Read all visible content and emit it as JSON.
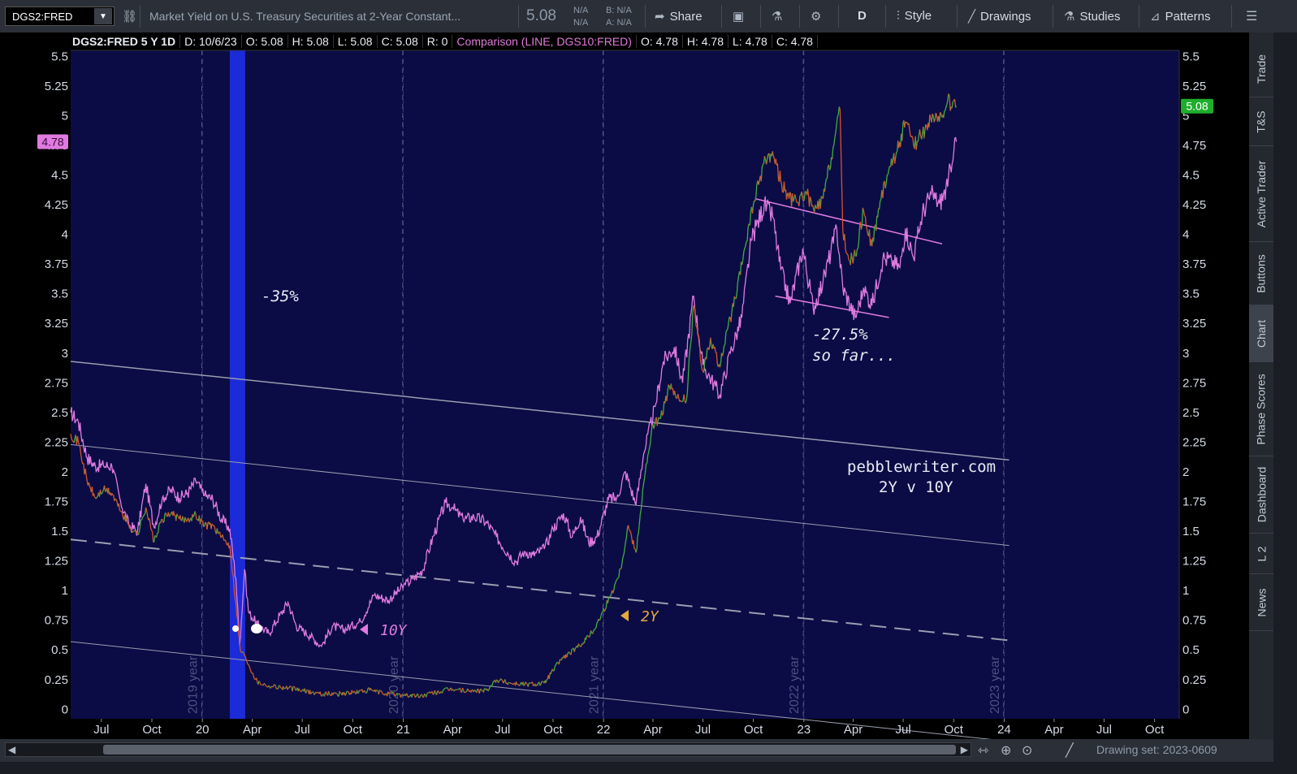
{
  "toolbar": {
    "symbol": "DGS2:FRED",
    "description": "Market Yield on U.S. Treasury Securities at 2-Year Constant...",
    "last_price": "5.08",
    "na1": "N/A",
    "na2": "N/A",
    "bid": "B: N/A",
    "ask": "A: N/A",
    "share_label": "Share",
    "period_label": "D",
    "style_label": "Style",
    "drawings_label": "Drawings",
    "studies_label": "Studies",
    "patterns_label": "Patterns"
  },
  "infobar": {
    "title": "DGS2:FRED 5 Y 1D",
    "date": "D: 10/6/23",
    "open": "O: 5.08",
    "high": "H: 5.08",
    "low": "L: 5.08",
    "close": "C: 5.08",
    "range": "R: 0",
    "comparison": "Comparison (LINE, DGS10:FRED)",
    "cmp_open": "O: 4.78",
    "cmp_high": "H: 4.78",
    "cmp_low": "L: 4.78",
    "cmp_close": "C: 4.78"
  },
  "side_tabs": [
    "Trade",
    "T&S",
    "Active Trader",
    "Buttons",
    "Chart",
    "Phase Scores",
    "Dashboard",
    "L 2",
    "News"
  ],
  "active_side_tab": "Chart",
  "bottombar": {
    "drawing_set": "Drawing set: 2023-0609"
  },
  "annotations": {
    "covid_drop": "-35%",
    "current_drop_line1": "-27.5%",
    "current_drop_line2": "so far...",
    "source_line1": "pebblewriter.com",
    "source_line2": "2Y v 10Y",
    "label_10y": "10Y",
    "label_2y": "2Y"
  },
  "colors": {
    "plot_bg": "#0b0c45",
    "series_2y_up": "#3fae3f",
    "series_2y_down": "#d9522b",
    "series_10y": "#e07ae0",
    "covid_band": "#1b2bd8",
    "label_2y": "#e6a93a",
    "last_price_badge": "#1fae2c",
    "cmp_badge": "#e07ae0"
  },
  "chart_data": {
    "type": "line",
    "title": "DGS2:FRED 5 Y 1D",
    "x_tick_labels": [
      "Jul",
      "Oct",
      "20",
      "Apr",
      "Jul",
      "Oct",
      "21",
      "Apr",
      "Jul",
      "Oct",
      "22",
      "Apr",
      "Jul",
      "Oct",
      "23",
      "Apr",
      "Jul",
      "Oct",
      "24",
      "Apr",
      "Jul",
      "Oct"
    ],
    "x_tick_dates": [
      "2019-07-01",
      "2019-10-01",
      "2020-01-01",
      "2020-04-01",
      "2020-07-01",
      "2020-10-01",
      "2021-01-01",
      "2021-04-01",
      "2021-07-01",
      "2021-10-01",
      "2022-01-01",
      "2022-04-01",
      "2022-07-01",
      "2022-10-01",
      "2023-01-01",
      "2023-04-01",
      "2023-07-01",
      "2023-10-01",
      "2024-01-01",
      "2024-04-01",
      "2024-07-01",
      "2024-10-01"
    ],
    "y_ticks": [
      0,
      0.25,
      0.5,
      0.75,
      1,
      1.25,
      1.5,
      1.75,
      2,
      2.25,
      2.5,
      2.75,
      3,
      3.25,
      3.5,
      3.75,
      4,
      4.25,
      4.5,
      4.75,
      5,
      5.25,
      5.5
    ],
    "y_tick_labels": [
      "0",
      "0.25",
      "0.5",
      "0.75",
      "1",
      "1.25",
      "1.5",
      "1.75",
      "2",
      "2.25",
      "2.5",
      "2.75",
      "3",
      "3.25",
      "3.5",
      "3.75",
      "4",
      "4.25",
      "4.5",
      "4.75",
      "5",
      "5.25",
      "5.5"
    ],
    "ylim": [
      -0.08,
      5.55
    ],
    "xlim": [
      "2019-05-06",
      "2024-11-15"
    ],
    "year_markers": [
      {
        "label": "2019 year",
        "date": "2019-12-31"
      },
      {
        "label": "2020 year",
        "date": "2020-12-31"
      },
      {
        "label": "2021 year",
        "date": "2021-12-31"
      },
      {
        "label": "2022 year",
        "date": "2022-12-31"
      },
      {
        "label": "2023 year",
        "date": "2023-12-31"
      }
    ],
    "last_value_2y": "5.08",
    "last_value_10y": "4.78",
    "highlight_band": {
      "start": "2020-02-20",
      "end": "2020-03-19"
    },
    "series": [
      {
        "name": "DGS2:FRED",
        "points": [
          [
            "2019-05-06",
            2.32
          ],
          [
            "2019-05-20",
            2.25
          ],
          [
            "2019-06-05",
            1.92
          ],
          [
            "2019-06-20",
            1.78
          ],
          [
            "2019-07-05",
            1.85
          ],
          [
            "2019-07-20",
            1.82
          ],
          [
            "2019-08-05",
            1.67
          ],
          [
            "2019-08-20",
            1.55
          ],
          [
            "2019-09-05",
            1.47
          ],
          [
            "2019-09-20",
            1.7
          ],
          [
            "2019-10-05",
            1.41
          ],
          [
            "2019-10-20",
            1.6
          ],
          [
            "2019-11-05",
            1.65
          ],
          [
            "2019-11-20",
            1.6
          ],
          [
            "2019-12-05",
            1.6
          ],
          [
            "2019-12-20",
            1.64
          ],
          [
            "2020-01-05",
            1.55
          ],
          [
            "2020-01-20",
            1.55
          ],
          [
            "2020-02-05",
            1.45
          ],
          [
            "2020-02-20",
            1.38
          ],
          [
            "2020-03-02",
            0.9
          ],
          [
            "2020-03-10",
            0.5
          ],
          [
            "2020-03-19",
            0.45
          ],
          [
            "2020-03-25",
            0.38
          ],
          [
            "2020-04-10",
            0.23
          ],
          [
            "2020-05-01",
            0.2
          ],
          [
            "2020-06-01",
            0.18
          ],
          [
            "2020-07-01",
            0.16
          ],
          [
            "2020-08-01",
            0.13
          ],
          [
            "2020-09-01",
            0.13
          ],
          [
            "2020-10-01",
            0.14
          ],
          [
            "2020-11-01",
            0.16
          ],
          [
            "2020-12-01",
            0.13
          ],
          [
            "2021-01-01",
            0.12
          ],
          [
            "2021-02-01",
            0.11
          ],
          [
            "2021-03-01",
            0.14
          ],
          [
            "2021-04-01",
            0.17
          ],
          [
            "2021-05-01",
            0.15
          ],
          [
            "2021-06-01",
            0.16
          ],
          [
            "2021-06-20",
            0.25
          ],
          [
            "2021-07-15",
            0.22
          ],
          [
            "2021-08-15",
            0.21
          ],
          [
            "2021-09-15",
            0.22
          ],
          [
            "2021-10-15",
            0.42
          ],
          [
            "2021-11-15",
            0.52
          ],
          [
            "2021-12-15",
            0.67
          ],
          [
            "2022-01-15",
            0.97
          ],
          [
            "2022-02-01",
            1.18
          ],
          [
            "2022-02-15",
            1.55
          ],
          [
            "2022-03-01",
            1.32
          ],
          [
            "2022-03-15",
            1.9
          ],
          [
            "2022-04-01",
            2.4
          ],
          [
            "2022-04-15",
            2.45
          ],
          [
            "2022-05-01",
            2.72
          ],
          [
            "2022-05-15",
            2.62
          ],
          [
            "2022-06-01",
            2.6
          ],
          [
            "2022-06-14",
            3.4
          ],
          [
            "2022-07-01",
            2.85
          ],
          [
            "2022-07-15",
            3.13
          ],
          [
            "2022-08-01",
            2.88
          ],
          [
            "2022-08-15",
            3.2
          ],
          [
            "2022-09-01",
            3.51
          ],
          [
            "2022-09-15",
            3.88
          ],
          [
            "2022-10-01",
            4.25
          ],
          [
            "2022-10-20",
            4.6
          ],
          [
            "2022-11-05",
            4.7
          ],
          [
            "2022-11-20",
            4.45
          ],
          [
            "2022-12-05",
            4.3
          ],
          [
            "2022-12-20",
            4.27
          ],
          [
            "2023-01-05",
            4.36
          ],
          [
            "2023-01-20",
            4.18
          ],
          [
            "2023-02-05",
            4.3
          ],
          [
            "2023-02-20",
            4.65
          ],
          [
            "2023-03-08",
            5.05
          ],
          [
            "2023-03-13",
            4.03
          ],
          [
            "2023-03-24",
            3.78
          ],
          [
            "2023-04-05",
            3.82
          ],
          [
            "2023-04-20",
            4.2
          ],
          [
            "2023-05-05",
            3.9
          ],
          [
            "2023-05-20",
            4.28
          ],
          [
            "2023-06-05",
            4.55
          ],
          [
            "2023-06-20",
            4.7
          ],
          [
            "2023-07-05",
            4.95
          ],
          [
            "2023-07-20",
            4.75
          ],
          [
            "2023-08-05",
            4.85
          ],
          [
            "2023-08-20",
            4.98
          ],
          [
            "2023-09-05",
            4.95
          ],
          [
            "2023-09-20",
            5.12
          ],
          [
            "2023-10-06",
            5.08
          ]
        ]
      },
      {
        "name": "DGS10:FRED",
        "points": [
          [
            "2019-05-06",
            2.5
          ],
          [
            "2019-05-20",
            2.42
          ],
          [
            "2019-06-05",
            2.12
          ],
          [
            "2019-06-20",
            2.05
          ],
          [
            "2019-07-05",
            2.05
          ],
          [
            "2019-07-20",
            2.05
          ],
          [
            "2019-08-05",
            1.75
          ],
          [
            "2019-08-20",
            1.55
          ],
          [
            "2019-09-05",
            1.5
          ],
          [
            "2019-09-20",
            1.9
          ],
          [
            "2019-10-05",
            1.53
          ],
          [
            "2019-10-20",
            1.78
          ],
          [
            "2019-11-05",
            1.85
          ],
          [
            "2019-11-20",
            1.78
          ],
          [
            "2019-12-05",
            1.82
          ],
          [
            "2019-12-20",
            1.92
          ],
          [
            "2020-01-05",
            1.8
          ],
          [
            "2020-01-20",
            1.77
          ],
          [
            "2020-02-05",
            1.6
          ],
          [
            "2020-02-20",
            1.52
          ],
          [
            "2020-03-02",
            1.1
          ],
          [
            "2020-03-09",
            0.54
          ],
          [
            "2020-03-18",
            1.18
          ],
          [
            "2020-03-25",
            0.82
          ],
          [
            "2020-04-10",
            0.72
          ],
          [
            "2020-05-01",
            0.64
          ],
          [
            "2020-06-05",
            0.9
          ],
          [
            "2020-06-20",
            0.7
          ],
          [
            "2020-07-15",
            0.62
          ],
          [
            "2020-08-05",
            0.53
          ],
          [
            "2020-08-25",
            0.7
          ],
          [
            "2020-09-15",
            0.67
          ],
          [
            "2020-10-15",
            0.74
          ],
          [
            "2020-11-09",
            0.96
          ],
          [
            "2020-12-05",
            0.92
          ],
          [
            "2021-01-05",
            1.05
          ],
          [
            "2021-01-20",
            1.1
          ],
          [
            "2021-02-05",
            1.17
          ],
          [
            "2021-02-25",
            1.46
          ],
          [
            "2021-03-19",
            1.74
          ],
          [
            "2021-04-01",
            1.7
          ],
          [
            "2021-04-20",
            1.6
          ],
          [
            "2021-05-10",
            1.62
          ],
          [
            "2021-06-01",
            1.58
          ],
          [
            "2021-06-20",
            1.45
          ],
          [
            "2021-07-10",
            1.32
          ],
          [
            "2021-07-25",
            1.24
          ],
          [
            "2021-08-10",
            1.33
          ],
          [
            "2021-08-25",
            1.3
          ],
          [
            "2021-09-15",
            1.35
          ],
          [
            "2021-10-01",
            1.52
          ],
          [
            "2021-10-20",
            1.65
          ],
          [
            "2021-11-05",
            1.45
          ],
          [
            "2021-11-20",
            1.62
          ],
          [
            "2021-12-05",
            1.4
          ],
          [
            "2021-12-20",
            1.45
          ],
          [
            "2022-01-10",
            1.77
          ],
          [
            "2022-01-25",
            1.78
          ],
          [
            "2022-02-10",
            2.0
          ],
          [
            "2022-03-01",
            1.72
          ],
          [
            "2022-03-15",
            2.15
          ],
          [
            "2022-04-05",
            2.55
          ],
          [
            "2022-04-20",
            2.93
          ],
          [
            "2022-05-10",
            3.05
          ],
          [
            "2022-05-25",
            2.75
          ],
          [
            "2022-06-14",
            3.48
          ],
          [
            "2022-07-01",
            2.9
          ],
          [
            "2022-08-01",
            2.65
          ],
          [
            "2022-08-20",
            3.0
          ],
          [
            "2022-09-10",
            3.3
          ],
          [
            "2022-09-27",
            3.95
          ],
          [
            "2022-10-21",
            4.25
          ],
          [
            "2022-11-05",
            4.15
          ],
          [
            "2022-11-20",
            3.7
          ],
          [
            "2022-12-07",
            3.42
          ],
          [
            "2022-12-30",
            3.88
          ],
          [
            "2023-01-18",
            3.38
          ],
          [
            "2023-02-05",
            3.6
          ],
          [
            "2023-03-02",
            4.05
          ],
          [
            "2023-03-13",
            3.55
          ],
          [
            "2023-04-05",
            3.3
          ],
          [
            "2023-04-20",
            3.55
          ],
          [
            "2023-05-05",
            3.4
          ],
          [
            "2023-05-25",
            3.8
          ],
          [
            "2023-06-10",
            3.78
          ],
          [
            "2023-06-25",
            3.72
          ],
          [
            "2023-07-05",
            4.05
          ],
          [
            "2023-07-20",
            3.8
          ],
          [
            "2023-08-05",
            4.18
          ],
          [
            "2023-08-21",
            4.34
          ],
          [
            "2023-09-05",
            4.26
          ],
          [
            "2023-09-20",
            4.4
          ],
          [
            "2023-10-03",
            4.81
          ],
          [
            "2023-10-06",
            4.78
          ]
        ]
      }
    ],
    "trendlines": [
      {
        "from": [
          "2019-05-06",
          2.93
        ],
        "to": [
          "2024-01-10",
          2.1
        ],
        "style": "solid"
      },
      {
        "from": [
          "2019-05-06",
          2.23
        ],
        "to": [
          "2024-01-10",
          1.38
        ],
        "style": "solid-thin"
      },
      {
        "from": [
          "2019-05-06",
          1.43
        ],
        "to": [
          "2024-01-10",
          0.58
        ],
        "style": "dashed"
      },
      {
        "from": [
          "2019-05-06",
          0.57
        ],
        "to": [
          "2024-01-10",
          -0.27
        ],
        "style": "solid-thin"
      },
      {
        "from": [
          "2022-10-05",
          4.3
        ],
        "to": [
          "2023-09-10",
          3.92
        ],
        "style": "pink"
      },
      {
        "from": [
          "2022-11-10",
          3.48
        ],
        "to": [
          "2023-06-05",
          3.3
        ],
        "style": "pink"
      }
    ]
  }
}
